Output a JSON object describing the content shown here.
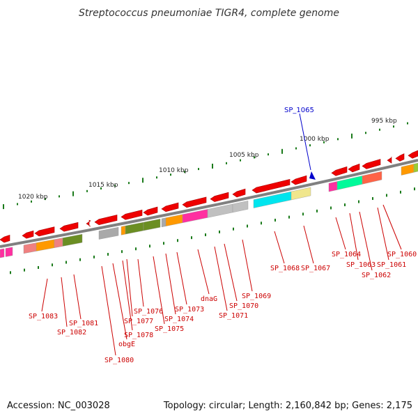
{
  "title": "Streptococcus pneumoniae TIGR4, complete genome",
  "footer": {
    "accession": "Accession: NC_003028",
    "summary": "Topology: circular; Length: 2,160,842 bp; Genes: 2,175"
  },
  "scale_labels": [
    "1020 kbp",
    "1015 kbp",
    "1010 kbp",
    "1005 kbp",
    "1000 kbp",
    "995 kbp"
  ],
  "marker": {
    "label": "SP_1065",
    "color": "#0000cc"
  },
  "gene_labels": [
    "SP_1083",
    "SP_1081",
    "SP_1082",
    "SP_1080",
    "obgE",
    "SP_1078",
    "SP_1077",
    "SP_1076",
    "SP_1075",
    "SP_1074",
    "SP_1073",
    "dnaG",
    "SP_1071",
    "SP_1070",
    "SP_1069",
    "SP_1068",
    "SP_1067",
    "SP_1064",
    "SP_1063",
    "SP_1062",
    "SP_1061",
    "SP_1060"
  ],
  "colors": {
    "gene_arrow": "#ee0000",
    "gene_label": "#cc0000",
    "tick": "#1a7a1a",
    "backbone": "#808080"
  }
}
